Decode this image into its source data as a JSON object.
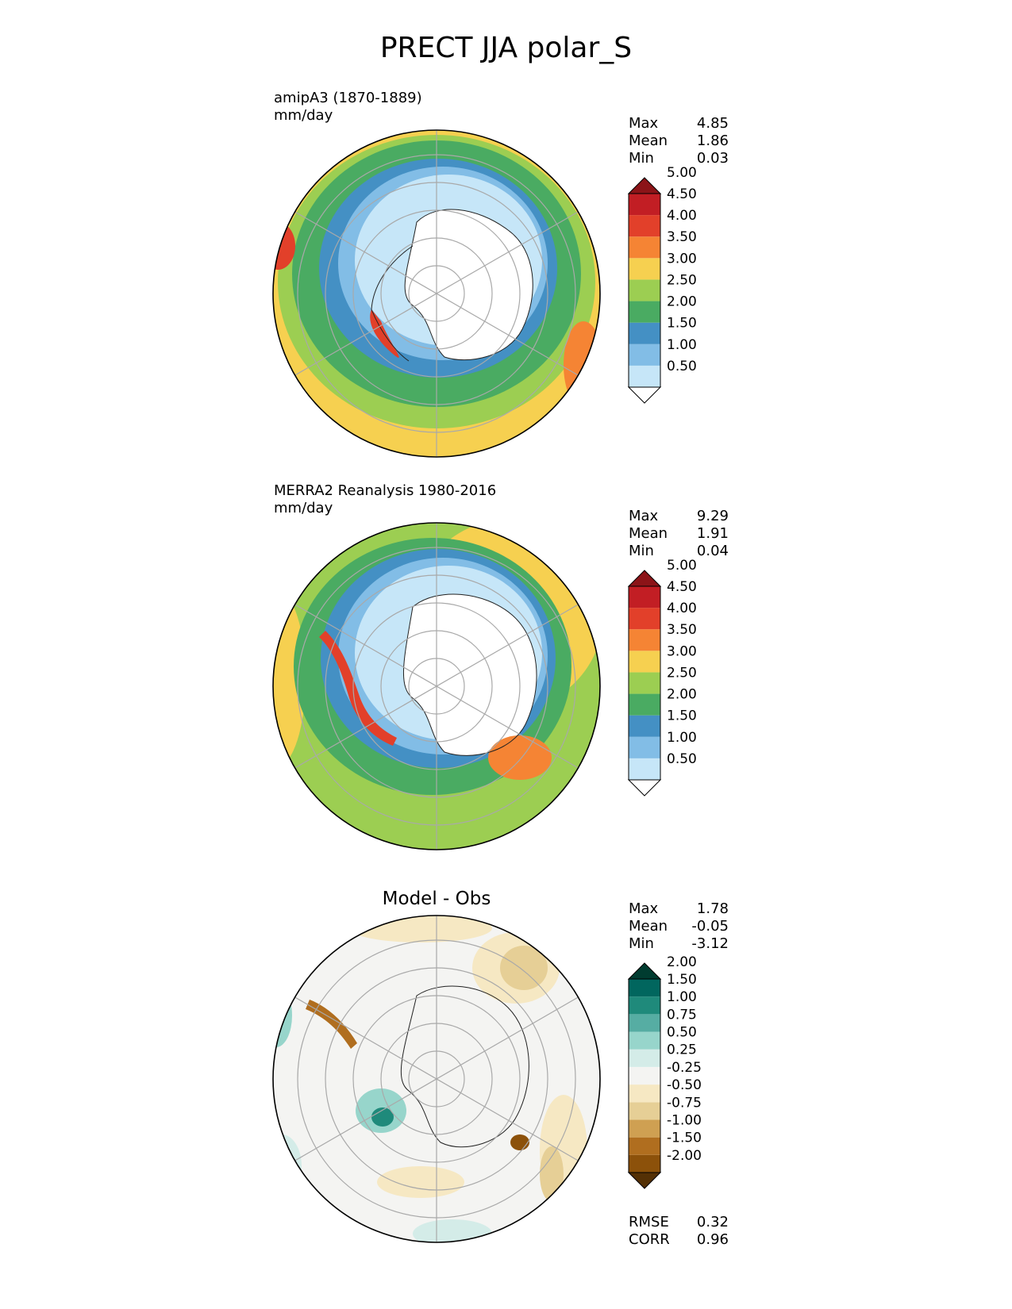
{
  "title": "PRECT JJA polar_S",
  "panels": [
    {
      "title_line1": "amipA3 (1870-1889)",
      "title_line2": "mm/day",
      "stats": [
        {
          "label": "Max",
          "value": "4.85"
        },
        {
          "label": "Mean",
          "value": "1.86"
        },
        {
          "label": "Min",
          "value": "0.03"
        }
      ]
    },
    {
      "title_line1": "MERRA2 Reanalysis 1980-2016",
      "title_line2": "mm/day",
      "stats": [
        {
          "label": "Max",
          "value": "9.29"
        },
        {
          "label": "Mean",
          "value": "1.91"
        },
        {
          "label": "Min",
          "value": "0.04"
        }
      ]
    },
    {
      "center_title": "Model - Obs",
      "stats": [
        {
          "label": "Max",
          "value": "1.78"
        },
        {
          "label": "Mean",
          "value": "-0.05"
        },
        {
          "label": "Min",
          "value": "-3.12"
        }
      ],
      "bottom_stats": [
        {
          "label": "RMSE",
          "value": "0.32"
        },
        {
          "label": "CORR",
          "value": "0.96"
        }
      ]
    }
  ],
  "colorbars": {
    "precip": {
      "levels": [
        "0.50",
        "1.00",
        "1.50",
        "2.00",
        "2.50",
        "3.00",
        "3.50",
        "4.00",
        "4.50",
        "5.00"
      ],
      "colors": [
        "#ffffff",
        "#c6e6f8",
        "#82bde6",
        "#4490c4",
        "#4aab62",
        "#9cce52",
        "#f6d050",
        "#f58434",
        "#e2402a",
        "#c21e24",
        "#8c1418"
      ]
    },
    "diff": {
      "levels": [
        "-2.00",
        "-1.50",
        "-1.00",
        "-0.75",
        "-0.50",
        "-0.25",
        "0.25",
        "0.50",
        "0.75",
        "1.00",
        "1.50",
        "2.00"
      ],
      "colors": [
        "#543005",
        "#8c510a",
        "#b06e1f",
        "#cfa052",
        "#e6cf96",
        "#f6e8c3",
        "#f4f4f2",
        "#d4ece8",
        "#97d5cb",
        "#56ada3",
        "#1f8a7b",
        "#01665e",
        "#003c30"
      ]
    }
  },
  "chart_data": {
    "type": "heatmap",
    "title": "PRECT JJA polar_S",
    "units": "mm/day",
    "maps": [
      {
        "name": "amipA3 (1870-1889)",
        "max": 4.85,
        "mean": 1.86,
        "min": 0.03,
        "contour_levels": [
          0.5,
          1.0,
          1.5,
          2.0,
          2.5,
          3.0,
          3.5,
          4.0,
          4.5,
          5.0
        ]
      },
      {
        "name": "MERRA2 Reanalysis 1980-2016",
        "max": 9.29,
        "mean": 1.91,
        "min": 0.04,
        "contour_levels": [
          0.5,
          1.0,
          1.5,
          2.0,
          2.5,
          3.0,
          3.5,
          4.0,
          4.5,
          5.0
        ]
      },
      {
        "name": "Model - Obs",
        "max": 1.78,
        "mean": -0.05,
        "min": -3.12,
        "rmse": 0.32,
        "corr": 0.96,
        "contour_levels": [
          -2.0,
          -1.5,
          -1.0,
          -0.75,
          -0.5,
          -0.25,
          0.25,
          0.5,
          0.75,
          1.0,
          1.5,
          2.0
        ]
      }
    ]
  }
}
